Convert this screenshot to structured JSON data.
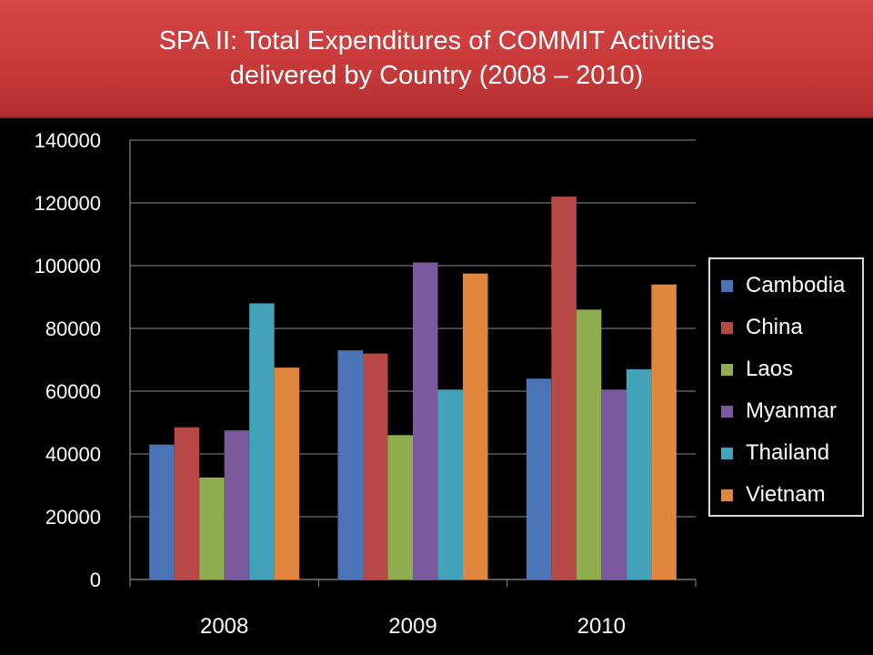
{
  "title": {
    "line1": "SPA II: Total Expenditures of COMMIT Activities",
    "line2": "delivered by Country (2008 – 2010)"
  },
  "chart_data": {
    "type": "bar",
    "title": "SPA II: Total Expenditures of COMMIT Activities delivered by Country (2008 – 2010)",
    "categories": [
      "2008",
      "2009",
      "2010"
    ],
    "series": [
      {
        "name": "Cambodia",
        "values": [
          43000,
          73000,
          64000
        ],
        "color": "#4a74b5"
      },
      {
        "name": "China",
        "values": [
          48500,
          72000,
          122000
        ],
        "color": "#b84845"
      },
      {
        "name": "Laos",
        "values": [
          32500,
          46000,
          86000
        ],
        "color": "#8fad4f"
      },
      {
        "name": "Myanmar",
        "values": [
          47500,
          101000,
          60500
        ],
        "color": "#7a5a9c"
      },
      {
        "name": "Thailand",
        "values": [
          88000,
          60500,
          67000
        ],
        "color": "#41a2b9"
      },
      {
        "name": "Vietnam",
        "values": [
          67500,
          97500,
          94000
        ],
        "color": "#e0873d"
      }
    ],
    "ylim": [
      0,
      140000
    ],
    "yticks": [
      "0",
      "20000",
      "40000",
      "60000",
      "80000",
      "100000",
      "120000",
      "140000"
    ],
    "grid": true,
    "legend_position": "right",
    "xlabel": "",
    "ylabel": ""
  }
}
